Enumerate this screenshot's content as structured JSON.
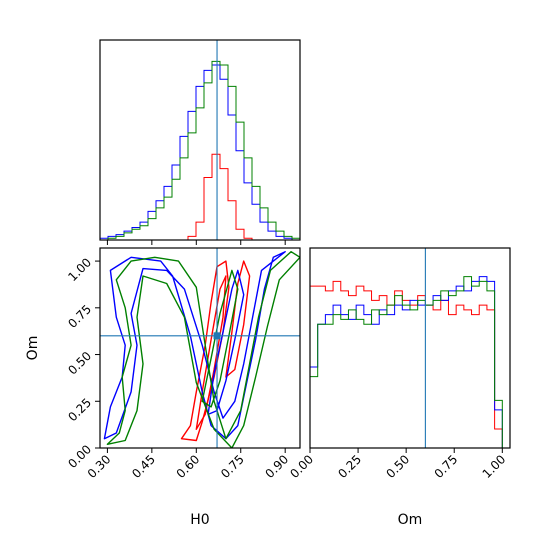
{
  "chart_data": {
    "type": "corner",
    "parameters": [
      "H0",
      "Om"
    ],
    "truths": {
      "H0": 0.67,
      "Om": 0.6
    },
    "series_colors": {
      "red": "#ff0000",
      "blue": "#0000ff",
      "green": "#008000"
    },
    "truth_color": "#1f77b4",
    "panels": {
      "hist_H0": {
        "xlim": [
          0.275,
          0.95
        ],
        "ylim": [
          0,
          1.12
        ],
        "edges": [
          0.275,
          0.302,
          0.329,
          0.356,
          0.383,
          0.41,
          0.437,
          0.464,
          0.491,
          0.518,
          0.545,
          0.572,
          0.599,
          0.626,
          0.653,
          0.68,
          0.707,
          0.734,
          0.761,
          0.788,
          0.815,
          0.842,
          0.869,
          0.896,
          0.923,
          0.95
        ],
        "series": [
          {
            "color": "red",
            "values": [
              0,
              0,
              0,
              0,
              0,
              0,
              0,
              0,
              0,
              0,
              0,
              0.02,
              0.1,
              0.35,
              0.48,
              0.4,
              0.22,
              0.06,
              0.01,
              0,
              0,
              0,
              0,
              0,
              0
            ]
          },
          {
            "color": "blue",
            "values": [
              0.01,
              0.02,
              0.03,
              0.05,
              0.07,
              0.1,
              0.16,
              0.22,
              0.3,
              0.42,
              0.58,
              0.72,
              0.86,
              0.95,
              0.98,
              0.9,
              0.7,
              0.5,
              0.32,
              0.2,
              0.1,
              0.05,
              0.02,
              0.01,
              0
            ]
          },
          {
            "color": "green",
            "values": [
              0,
              0.01,
              0.02,
              0.04,
              0.06,
              0.08,
              0.12,
              0.18,
              0.24,
              0.34,
              0.46,
              0.6,
              0.74,
              0.88,
              1.0,
              0.98,
              0.86,
              0.66,
              0.46,
              0.3,
              0.18,
              0.1,
              0.05,
              0.02,
              0.01
            ]
          }
        ]
      },
      "scatter_H0_Om": {
        "xlim": [
          0.275,
          0.95
        ],
        "ylim": [
          0,
          1.07
        ],
        "xticks": [
          "0.30",
          "0.45",
          "0.60",
          "0.75",
          "0.90"
        ],
        "xtick_values": [
          0.3,
          0.45,
          0.6,
          0.75,
          0.9
        ],
        "yticks": [
          "0.00",
          "0.25",
          "0.50",
          "0.75",
          "1.00"
        ],
        "ytick_values": [
          0.0,
          0.25,
          0.5,
          0.75,
          1.0
        ],
        "xlabel": "H0",
        "ylabel": "Om",
        "contours": [
          {
            "color": "red",
            "points": [
              [
                0.55,
                0.05
              ],
              [
                0.58,
                0.12
              ],
              [
                0.6,
                0.3
              ],
              [
                0.63,
                0.55
              ],
              [
                0.65,
                0.78
              ],
              [
                0.67,
                0.97
              ],
              [
                0.7,
                1.0
              ],
              [
                0.71,
                0.86
              ],
              [
                0.69,
                0.62
              ],
              [
                0.66,
                0.38
              ],
              [
                0.62,
                0.14
              ],
              [
                0.6,
                0.04
              ]
            ]
          },
          {
            "color": "red",
            "points": [
              [
                0.6,
                0.1
              ],
              [
                0.62,
                0.3
              ],
              [
                0.65,
                0.58
              ],
              [
                0.68,
                0.85
              ],
              [
                0.7,
                0.92
              ],
              [
                0.69,
                0.7
              ],
              [
                0.66,
                0.42
              ],
              [
                0.63,
                0.18
              ]
            ]
          },
          {
            "color": "red",
            "points": [
              [
                0.7,
                0.38
              ],
              [
                0.72,
                0.62
              ],
              [
                0.74,
                0.88
              ],
              [
                0.76,
                1.0
              ],
              [
                0.78,
                0.92
              ],
              [
                0.76,
                0.66
              ],
              [
                0.73,
                0.42
              ]
            ]
          },
          {
            "color": "blue",
            "points": [
              [
                0.29,
                0.05
              ],
              [
                0.31,
                0.22
              ],
              [
                0.35,
                0.38
              ],
              [
                0.36,
                0.55
              ],
              [
                0.33,
                0.7
              ],
              [
                0.31,
                0.95
              ],
              [
                0.38,
                1.02
              ],
              [
                0.48,
                1.0
              ],
              [
                0.52,
                0.92
              ],
              [
                0.58,
                0.6
              ],
              [
                0.62,
                0.3
              ],
              [
                0.65,
                0.12
              ],
              [
                0.7,
                0.05
              ],
              [
                0.74,
                0.12
              ],
              [
                0.77,
                0.35
              ],
              [
                0.8,
                0.58
              ],
              [
                0.83,
                0.85
              ],
              [
                0.86,
                1.02
              ],
              [
                0.9,
                1.05
              ],
              [
                0.82,
                0.95
              ],
              [
                0.79,
                0.7
              ],
              [
                0.76,
                0.45
              ],
              [
                0.73,
                0.25
              ],
              [
                0.69,
                0.16
              ],
              [
                0.66,
                0.3
              ],
              [
                0.62,
                0.55
              ],
              [
                0.56,
                0.85
              ],
              [
                0.5,
                0.95
              ],
              [
                0.42,
                0.96
              ],
              [
                0.38,
                0.72
              ],
              [
                0.4,
                0.55
              ],
              [
                0.38,
                0.3
              ],
              [
                0.33,
                0.08
              ]
            ]
          },
          {
            "color": "blue",
            "points": [
              [
                0.64,
                0.18
              ],
              [
                0.66,
                0.4
              ],
              [
                0.69,
                0.62
              ],
              [
                0.72,
                0.85
              ],
              [
                0.74,
                0.95
              ],
              [
                0.76,
                0.82
              ],
              [
                0.73,
                0.58
              ],
              [
                0.7,
                0.36
              ],
              [
                0.67,
                0.2
              ]
            ]
          },
          {
            "color": "green",
            "points": [
              [
                0.3,
                0.02
              ],
              [
                0.34,
                0.08
              ],
              [
                0.36,
                0.2
              ],
              [
                0.35,
                0.38
              ],
              [
                0.38,
                0.55
              ],
              [
                0.36,
                0.75
              ],
              [
                0.33,
                0.9
              ],
              [
                0.38,
                1.0
              ],
              [
                0.46,
                1.02
              ],
              [
                0.54,
                1.0
              ],
              [
                0.6,
                0.86
              ],
              [
                0.63,
                0.55
              ],
              [
                0.66,
                0.25
              ],
              [
                0.7,
                0.05
              ],
              [
                0.75,
                0.2
              ],
              [
                0.78,
                0.45
              ],
              [
                0.81,
                0.7
              ],
              [
                0.85,
                0.95
              ],
              [
                0.92,
                1.05
              ],
              [
                0.95,
                1.02
              ],
              [
                0.88,
                0.9
              ],
              [
                0.84,
                0.65
              ],
              [
                0.8,
                0.38
              ],
              [
                0.76,
                0.12
              ],
              [
                0.72,
                0.0
              ],
              [
                0.66,
                0.1
              ],
              [
                0.6,
                0.35
              ],
              [
                0.56,
                0.7
              ],
              [
                0.5,
                0.88
              ],
              [
                0.42,
                0.92
              ],
              [
                0.4,
                0.7
              ],
              [
                0.42,
                0.45
              ],
              [
                0.4,
                0.2
              ],
              [
                0.36,
                0.04
              ]
            ]
          },
          {
            "color": "green",
            "points": [
              [
                0.62,
                0.25
              ],
              [
                0.65,
                0.48
              ],
              [
                0.68,
                0.72
              ],
              [
                0.72,
                0.95
              ],
              [
                0.74,
                0.85
              ],
              [
                0.71,
                0.6
              ],
              [
                0.68,
                0.36
              ],
              [
                0.65,
                0.22
              ]
            ]
          }
        ]
      },
      "hist_Om": {
        "xlim": [
          0.0,
          1.04
        ],
        "ylim": [
          0,
          0.42
        ],
        "xticks": [
          "0.00",
          "0.25",
          "0.50",
          "0.75",
          "1.00"
        ],
        "xtick_values": [
          0.0,
          0.25,
          0.5,
          0.75,
          1.0
        ],
        "xlabel": "Om",
        "edges": [
          0.0,
          0.04,
          0.08,
          0.12,
          0.16,
          0.2,
          0.24,
          0.28,
          0.32,
          0.36,
          0.4,
          0.44,
          0.48,
          0.52,
          0.56,
          0.6,
          0.64,
          0.68,
          0.72,
          0.76,
          0.8,
          0.84,
          0.88,
          0.92,
          0.96,
          1.0,
          1.04
        ],
        "series": [
          {
            "color": "red",
            "values": [
              0.34,
              0.34,
              0.33,
              0.35,
              0.33,
              0.32,
              0.34,
              0.33,
              0.31,
              0.32,
              0.3,
              0.33,
              0.31,
              0.3,
              0.32,
              0.3,
              0.29,
              0.31,
              0.28,
              0.3,
              0.29,
              0.28,
              0.3,
              0.29,
              0.04,
              0.0
            ]
          },
          {
            "color": "blue",
            "values": [
              0.17,
              0.26,
              0.28,
              0.3,
              0.28,
              0.27,
              0.3,
              0.28,
              0.26,
              0.29,
              0.28,
              0.3,
              0.29,
              0.31,
              0.3,
              0.3,
              0.32,
              0.31,
              0.33,
              0.34,
              0.33,
              0.35,
              0.36,
              0.35,
              0.08,
              0.0
            ]
          },
          {
            "color": "green",
            "values": [
              0.15,
              0.26,
              0.26,
              0.28,
              0.27,
              0.29,
              0.27,
              0.26,
              0.29,
              0.28,
              0.3,
              0.32,
              0.3,
              0.29,
              0.31,
              0.3,
              0.31,
              0.33,
              0.32,
              0.33,
              0.36,
              0.34,
              0.35,
              0.33,
              0.1,
              0.0
            ]
          }
        ]
      }
    }
  }
}
